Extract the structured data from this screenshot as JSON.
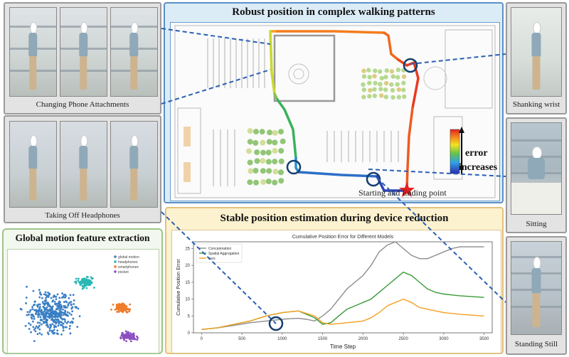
{
  "left_panel": {
    "attachments_caption": "Changing Phone Attachments",
    "headphones_caption": "Taking Off Headphones"
  },
  "motion_panel": {
    "title": "Global motion feature extraction",
    "legend": [
      "global motion",
      "headphones",
      "smartphones",
      "pocket"
    ],
    "colors": {
      "global": "#3a7fc4",
      "headphones": "#2bb7b4",
      "smartphones": "#ef7d2b",
      "pocket": "#8b4fc1"
    }
  },
  "map_panel": {
    "title": "Robust position in complex walking patterns",
    "error_label_1": "error",
    "error_label_2": "increases",
    "start_label": "Starting and Ending point"
  },
  "chart_panel": {
    "title": "Stable position estimation during device reduction"
  },
  "right_panel": {
    "captions": [
      "Shanking wrist",
      "Sitting",
      "Standing Still"
    ]
  },
  "chart_data": {
    "type": "line",
    "title": "Cumulative Position Error for Different Models",
    "xlabel": "Time Step",
    "ylabel": "Cumulative Position Error",
    "xlim": [
      -100,
      3600
    ],
    "ylim": [
      0,
      27
    ],
    "xticks": [
      0,
      500,
      1000,
      1500,
      2000,
      2500,
      3000,
      3500
    ],
    "yticks": [
      0,
      5,
      10,
      15,
      20,
      25
    ],
    "legend": "top-left",
    "series": [
      {
        "name": "Concatenation",
        "color": "#8c8c8c",
        "x": [
          0,
          200,
          400,
          600,
          800,
          1000,
          1100,
          1200,
          1300,
          1400,
          1500,
          1600,
          1700,
          1800,
          1900,
          2000,
          2100,
          2200,
          2300,
          2400,
          2500,
          2600,
          2700,
          2800,
          2900,
          3000,
          3100,
          3200,
          3300,
          3500
        ],
        "y": [
          1,
          1.5,
          2.2,
          3,
          3.5,
          4,
          4.2,
          4.3,
          4,
          3.5,
          5,
          7,
          10,
          13,
          15,
          17,
          20,
          24,
          26,
          27,
          25,
          23,
          22,
          22,
          23,
          24,
          25,
          25.5,
          25.5,
          25.5
        ]
      },
      {
        "name": "Spatial Aggregation",
        "color": "#3a9a3a",
        "x": [
          0,
          200,
          400,
          600,
          800,
          1000,
          1200,
          1400,
          1500,
          1600,
          1700,
          1800,
          1900,
          2000,
          2100,
          2200,
          2300,
          2400,
          2500,
          2600,
          2700,
          2800,
          2900,
          3000,
          3200,
          3500
        ],
        "y": [
          1,
          1.5,
          2.5,
          3.5,
          5,
          6,
          6.5,
          4.5,
          2.5,
          3,
          5,
          7,
          8,
          9,
          10,
          12,
          14,
          16,
          18,
          17,
          15,
          13,
          12,
          11.5,
          11,
          10.5
        ]
      },
      {
        "name": "ours",
        "color": "#f5a020",
        "x": [
          0,
          200,
          400,
          600,
          800,
          1000,
          1200,
          1400,
          1500,
          1600,
          1800,
          2000,
          2100,
          2200,
          2300,
          2400,
          2500,
          2600,
          2700,
          2800,
          2900,
          3000,
          3200,
          3500
        ],
        "y": [
          1,
          1.5,
          2.5,
          3.5,
          5,
          6,
          6.5,
          5,
          3,
          2.5,
          3,
          3.5,
          4.5,
          6,
          8,
          9,
          10,
          9,
          7.5,
          7,
          6.5,
          6,
          5.5,
          5
        ]
      }
    ]
  }
}
